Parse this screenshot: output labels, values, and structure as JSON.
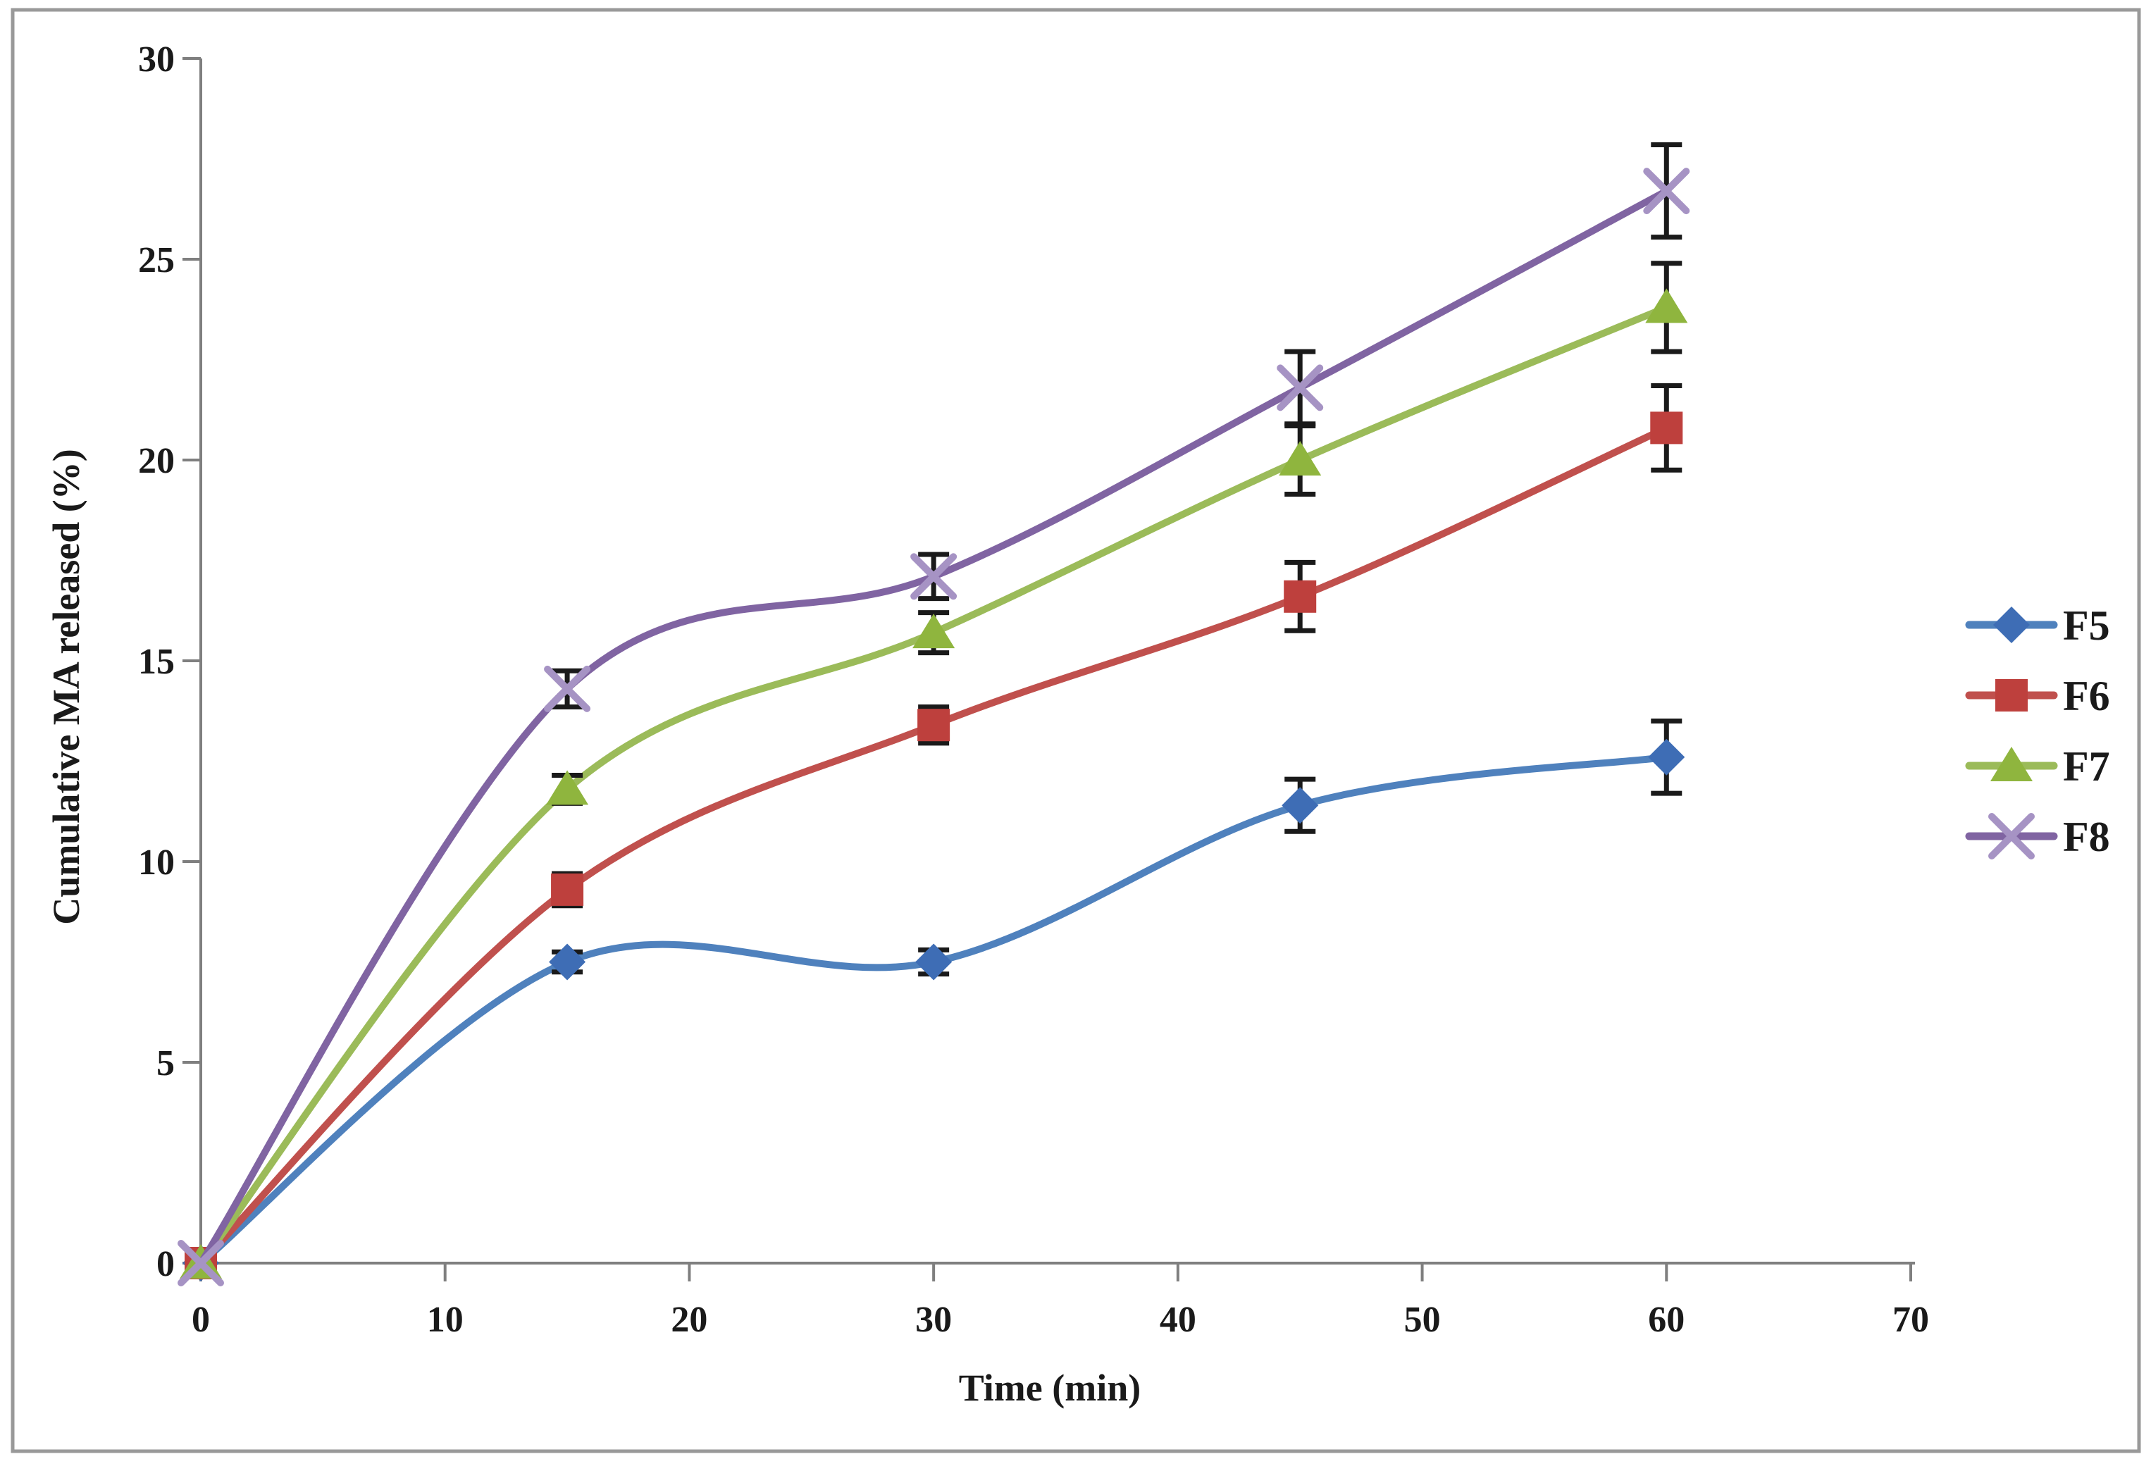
{
  "figure": {
    "background": "#ffffff",
    "border_color": "#999999"
  },
  "chart_data": {
    "type": "line",
    "title": "",
    "xlabel": "Time (min)",
    "ylabel": "Cumulative MA released (%)",
    "xlim": [
      0,
      70
    ],
    "ylim": [
      0,
      30
    ],
    "x_ticks": [
      0,
      10,
      20,
      30,
      40,
      50,
      60,
      70
    ],
    "y_ticks": [
      0,
      5,
      10,
      15,
      20,
      25,
      30
    ],
    "grid": false,
    "legend_position": "right",
    "error_bars": true,
    "line_style": "smooth",
    "x": [
      0,
      15,
      30,
      45,
      60
    ],
    "series": [
      {
        "name": "F5",
        "color": "#4F81BD",
        "marker_color": "#3E6DB5",
        "marker": "diamond",
        "values": [
          0,
          7.5,
          7.5,
          11.4,
          12.6
        ],
        "errors": [
          0,
          0.25,
          0.3,
          0.65,
          0.9
        ]
      },
      {
        "name": "F6",
        "color": "#C0504D",
        "marker_color": "#BE403D",
        "marker": "square",
        "values": [
          0,
          9.3,
          13.4,
          16.6,
          20.8
        ],
        "errors": [
          0,
          0.4,
          0.45,
          0.85,
          1.05
        ]
      },
      {
        "name": "F7",
        "color": "#9BBB59",
        "marker_color": "#8FB53E",
        "marker": "triangle",
        "values": [
          0,
          11.8,
          15.7,
          20.0,
          23.8
        ],
        "errors": [
          0,
          0.35,
          0.5,
          0.85,
          1.1
        ]
      },
      {
        "name": "F8",
        "color": "#8064A2",
        "marker_color": "#A693C4",
        "marker": "x",
        "values": [
          0,
          14.3,
          17.1,
          21.8,
          26.7
        ],
        "errors": [
          0,
          0.45,
          0.55,
          0.9,
          1.15
        ]
      }
    ],
    "error_bar_color": "#1a1a1a",
    "axis_color": "#7f7f7f",
    "text_color": "#1a1a1a"
  }
}
